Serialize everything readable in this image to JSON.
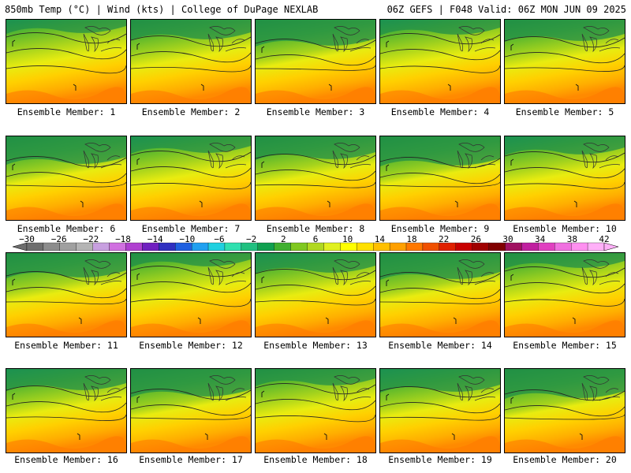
{
  "header": {
    "left_title": "850mb Temp (°C) | Wind (kts) | College of DuPage NEXLAB",
    "right_title": "06Z GEFS | F048 Valid: 06Z MON JUN 09 2025"
  },
  "panels": [
    {
      "caption": "Ensemble Member: 1"
    },
    {
      "caption": "Ensemble Member: 2"
    },
    {
      "caption": "Ensemble Member: 3"
    },
    {
      "caption": "Ensemble Member: 4"
    },
    {
      "caption": "Ensemble Member: 5"
    },
    {
      "caption": "Ensemble Member: 6"
    },
    {
      "caption": "Ensemble Member: 7"
    },
    {
      "caption": "Ensemble Member: 8"
    },
    {
      "caption": "Ensemble Member: 9"
    },
    {
      "caption": "Ensemble Member: 10"
    },
    {
      "caption": "Ensemble Member: 11"
    },
    {
      "caption": "Ensemble Member: 12"
    },
    {
      "caption": "Ensemble Member: 13"
    },
    {
      "caption": "Ensemble Member: 14"
    },
    {
      "caption": "Ensemble Member: 15"
    },
    {
      "caption": "Ensemble Member: 16"
    },
    {
      "caption": "Ensemble Member: 17"
    },
    {
      "caption": "Ensemble Member: 18"
    },
    {
      "caption": "Ensemble Member: 19"
    },
    {
      "caption": "Ensemble Member: 20"
    }
  ],
  "colorbar": {
    "labels": [
      "−30",
      "−26",
      "−22",
      "−18",
      "−14",
      "−10",
      "−6",
      "−2",
      "2",
      "6",
      "10",
      "14",
      "18",
      "22",
      "26",
      "30",
      "34",
      "38",
      "42"
    ],
    "colors": [
      "#6e6e6e",
      "#8c8c8c",
      "#a0a0a0",
      "#b4b4b4",
      "#c8a0e0",
      "#d070e0",
      "#b040d0",
      "#7020c0",
      "#3030c0",
      "#2060e0",
      "#20a0f0",
      "#20d0e0",
      "#30e0b0",
      "#20c080",
      "#10a050",
      "#40b030",
      "#80c820",
      "#b0d820",
      "#e0f020",
      "#ffff00",
      "#ffe000",
      "#ffc000",
      "#ffa000",
      "#ff7800",
      "#f05000",
      "#e02000",
      "#c80000",
      "#a00000",
      "#800000",
      "#a01060",
      "#c020a0",
      "#e040c0",
      "#f070e0",
      "#ff90f0",
      "#ffb0f8"
    ]
  }
}
